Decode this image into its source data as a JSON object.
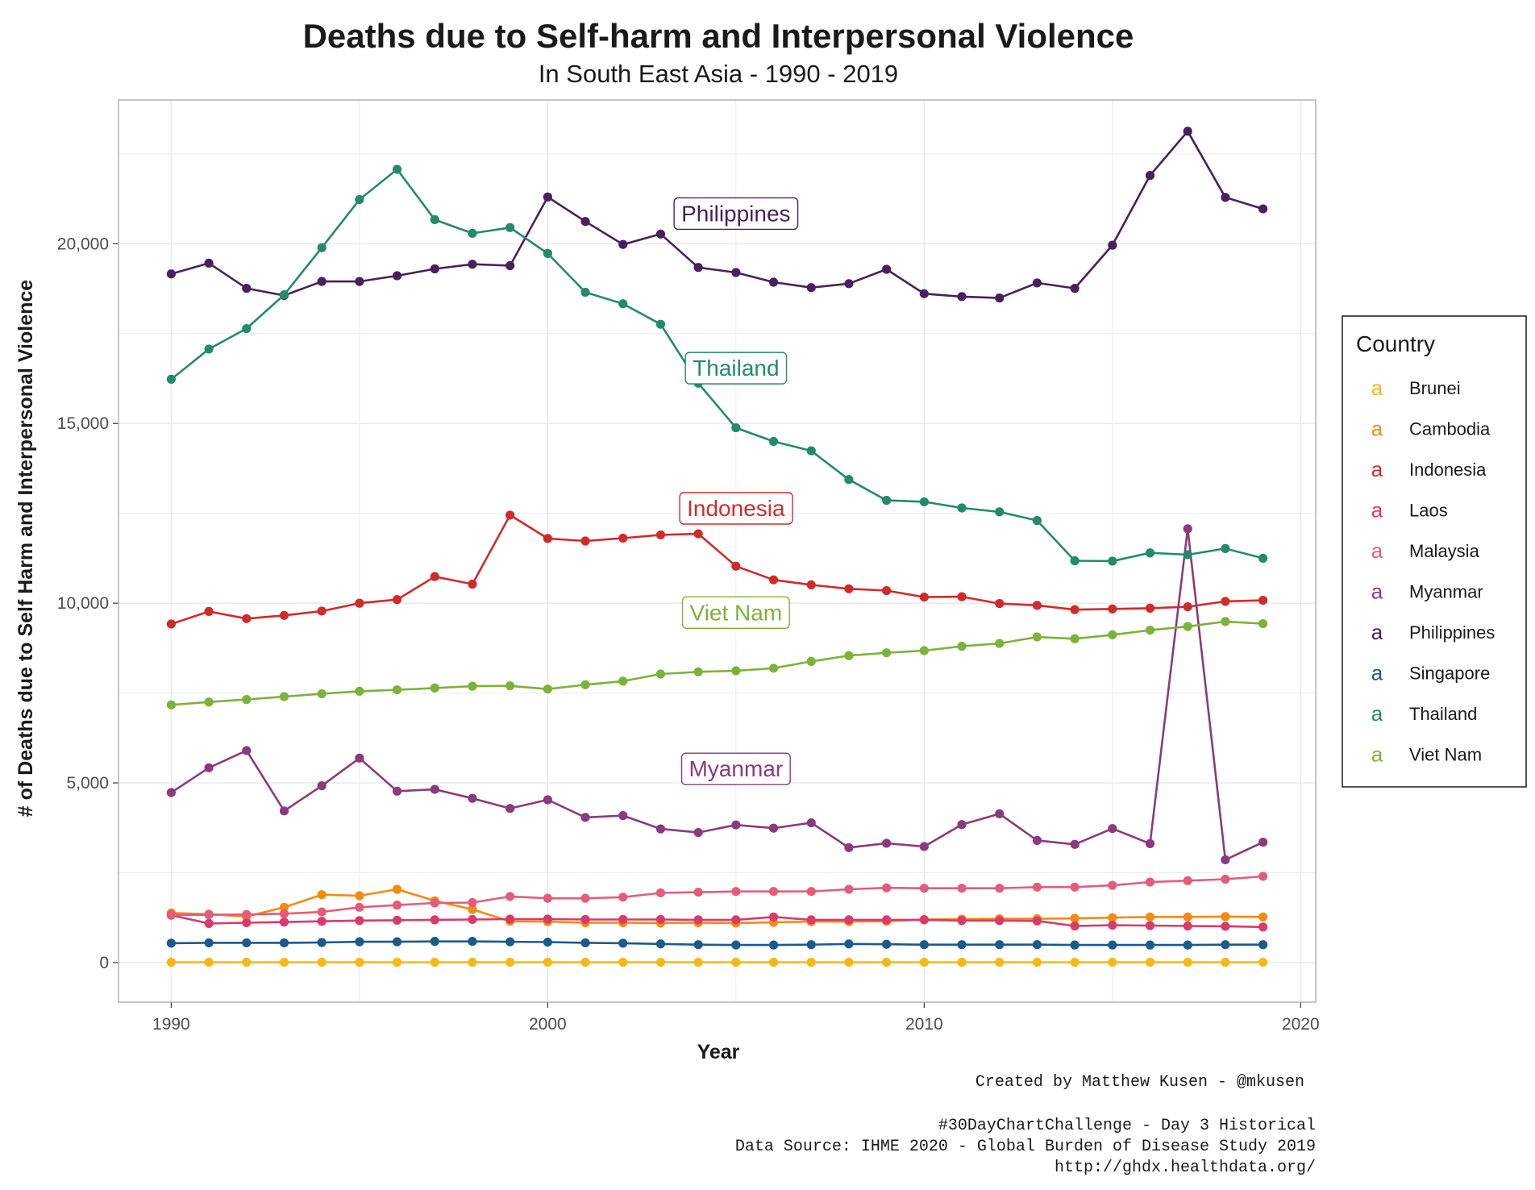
{
  "chart_data": {
    "type": "line",
    "title": "Deaths due to Self-harm and Interpersonal Violence",
    "subtitle": "In South East Asia - 1990 - 2019",
    "xlabel": "Year",
    "ylabel": "# of Deaths due to Self Harm and Interpersonal Violence",
    "xlim": [
      1988.6,
      2020.4
    ],
    "ylim": [
      -1100,
      24000
    ],
    "x_ticks": [
      1990,
      2000,
      2010,
      2020
    ],
    "x_tick_labels": [
      "1990",
      "2000",
      "2010",
      "2020"
    ],
    "y_ticks": [
      0,
      5000,
      10000,
      15000,
      20000
    ],
    "y_tick_labels": [
      "0",
      "5,000",
      "10,000",
      "15,000",
      "20,000"
    ],
    "grid": true,
    "legend": {
      "title": "Country",
      "placement": "right",
      "glyph": "a"
    },
    "x": [
      1990,
      1991,
      1992,
      1993,
      1994,
      1995,
      1996,
      1997,
      1998,
      1999,
      2000,
      2001,
      2002,
      2003,
      2004,
      2005,
      2006,
      2007,
      2008,
      2009,
      2010,
      2011,
      2012,
      2013,
      2014,
      2015,
      2016,
      2017,
      2018,
      2019
    ],
    "series": [
      {
        "name": "Brunei",
        "color": "#F5B914",
        "values": [
          10,
          10,
          10,
          10,
          10,
          10,
          10,
          10,
          10,
          10,
          10,
          10,
          10,
          10,
          10,
          10,
          10,
          10,
          10,
          10,
          10,
          10,
          10,
          10,
          10,
          10,
          10,
          10,
          10,
          10
        ]
      },
      {
        "name": "Cambodia",
        "color": "#F48A10",
        "values": [
          1380,
          1350,
          1280,
          1540,
          1890,
          1860,
          2040,
          1720,
          1480,
          1150,
          1140,
          1110,
          1110,
          1100,
          1110,
          1100,
          1120,
          1140,
          1140,
          1150,
          1200,
          1210,
          1220,
          1220,
          1230,
          1250,
          1270,
          1270,
          1280,
          1270
        ]
      },
      {
        "name": "Indonesia",
        "color": "#D02B2B",
        "values": [
          9420,
          9770,
          9570,
          9660,
          9780,
          10000,
          10100,
          10740,
          10530,
          12450,
          11800,
          11730,
          11810,
          11900,
          11930,
          11030,
          10650,
          10510,
          10400,
          10350,
          10170,
          10180,
          9990,
          9940,
          9820,
          9840,
          9860,
          9900,
          10050,
          10080
        ]
      },
      {
        "name": "Laos",
        "color": "#D93A6A",
        "values": [
          1320,
          1090,
          1110,
          1130,
          1150,
          1170,
          1180,
          1190,
          1200,
          1210,
          1210,
          1200,
          1200,
          1200,
          1190,
          1190,
          1270,
          1190,
          1190,
          1190,
          1190,
          1170,
          1170,
          1160,
          1020,
          1040,
          1030,
          1020,
          1010,
          990
        ]
      },
      {
        "name": "Malaysia",
        "color": "#E35D7A",
        "values": [
          1330,
          1330,
          1340,
          1360,
          1410,
          1540,
          1600,
          1660,
          1670,
          1840,
          1790,
          1790,
          1820,
          1940,
          1960,
          1980,
          1980,
          1980,
          2040,
          2080,
          2070,
          2070,
          2070,
          2100,
          2100,
          2150,
          2240,
          2280,
          2320,
          2400
        ]
      },
      {
        "name": "Myanmar",
        "color": "#8B3A7E",
        "values": [
          4730,
          5420,
          5900,
          4220,
          4920,
          5690,
          4770,
          4820,
          4570,
          4290,
          4530,
          4040,
          4090,
          3720,
          3620,
          3830,
          3740,
          3890,
          3200,
          3320,
          3230,
          3840,
          4140,
          3400,
          3290,
          3730,
          3310,
          12070,
          2860,
          3350
        ]
      },
      {
        "name": "Philippines",
        "color": "#4A1F5F",
        "values": [
          19160,
          19460,
          18760,
          18560,
          18950,
          18950,
          19110,
          19300,
          19430,
          19390,
          21300,
          20620,
          19980,
          20270,
          19340,
          19200,
          18930,
          18780,
          18890,
          19290,
          18610,
          18530,
          18490,
          18910,
          18760,
          19960,
          21900,
          23130,
          21290,
          20970
        ]
      },
      {
        "name": "Singapore",
        "color": "#1C5A8A",
        "values": [
          540,
          550,
          550,
          550,
          560,
          580,
          580,
          590,
          590,
          580,
          570,
          550,
          540,
          520,
          500,
          490,
          490,
          500,
          520,
          510,
          500,
          500,
          500,
          500,
          490,
          490,
          490,
          490,
          500,
          500
        ]
      },
      {
        "name": "Thailand",
        "color": "#238B6A",
        "values": [
          16230,
          17070,
          17640,
          18580,
          19890,
          21230,
          22070,
          20670,
          20290,
          20450,
          19730,
          18650,
          18330,
          17760,
          16120,
          14880,
          14500,
          14240,
          13440,
          12860,
          12820,
          12650,
          12540,
          12300,
          11180,
          11170,
          11400,
          11350,
          11520,
          11250
        ]
      },
      {
        "name": "Viet Nam",
        "color": "#7DB23A",
        "values": [
          7170,
          7250,
          7320,
          7400,
          7480,
          7550,
          7590,
          7640,
          7690,
          7700,
          7610,
          7730,
          7830,
          8030,
          8090,
          8120,
          8190,
          8380,
          8540,
          8620,
          8680,
          8800,
          8880,
          9060,
          9010,
          9120,
          9250,
          9350,
          9490,
          9430
        ]
      }
    ],
    "annotations": [
      {
        "text": "Philippines",
        "series": "Philippines",
        "x": 2005,
        "y": 20850
      },
      {
        "text": "Thailand",
        "series": "Thailand",
        "x": 2005,
        "y": 16550
      },
      {
        "text": "Indonesia",
        "series": "Indonesia",
        "x": 2005,
        "y": 12650
      },
      {
        "text": "Viet Nam",
        "series": "Viet Nam",
        "x": 2005,
        "y": 9750
      },
      {
        "text": "Myanmar",
        "series": "Myanmar",
        "x": 2005,
        "y": 5400
      }
    ]
  },
  "caption": {
    "credit": "Created by Matthew Kusen - @mkusen",
    "line1": "#30DayChartChallenge - Day 3 Historical",
    "line2": "Data Source: IHME 2020 - Global Burden of Disease Study 2019",
    "line3": "http://ghdx.healthdata.org/"
  }
}
